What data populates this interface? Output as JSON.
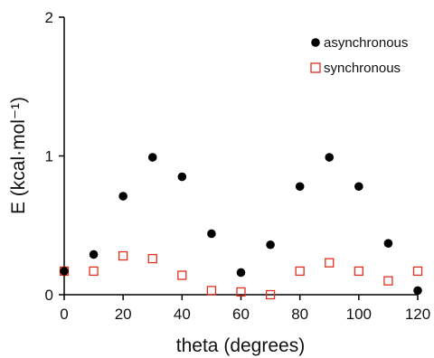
{
  "chart_data": {
    "type": "scatter",
    "title": "",
    "xlabel": "theta (degrees)",
    "ylabel": "E (kcal·mol⁻¹)",
    "xlim": [
      0,
      120
    ],
    "ylim": [
      0,
      2
    ],
    "xticks": [
      0,
      20,
      40,
      60,
      80,
      100,
      120
    ],
    "yticks": [
      0,
      1,
      2
    ],
    "grid": false,
    "legend_position": "top-right",
    "series": [
      {
        "name": "asynchronous",
        "marker": "filled-circle",
        "color": "#000000",
        "x": [
          0,
          10,
          20,
          30,
          40,
          50,
          60,
          70,
          80,
          90,
          100,
          110,
          120
        ],
        "y": [
          0.17,
          0.29,
          0.71,
          0.99,
          0.85,
          0.44,
          0.16,
          0.36,
          0.78,
          0.99,
          0.78,
          0.37,
          0.03
        ]
      },
      {
        "name": "synchronous",
        "marker": "open-square",
        "color": "#e0301e",
        "x": [
          0,
          10,
          20,
          30,
          40,
          50,
          60,
          70,
          80,
          90,
          100,
          110,
          120
        ],
        "y": [
          0.17,
          0.17,
          0.28,
          0.26,
          0.14,
          0.03,
          0.02,
          0.0,
          0.17,
          0.23,
          0.17,
          0.1,
          0.17
        ]
      }
    ]
  }
}
